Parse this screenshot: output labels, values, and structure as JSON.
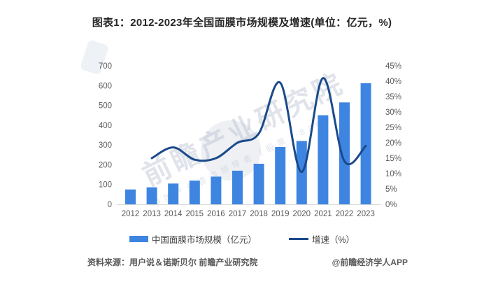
{
  "title": "图表1：2012-2023年全国面膜市场规模及增速(单位：亿元，%)",
  "legend": {
    "bars": "中国面膜市场规模（亿元）",
    "line": "增速（%）"
  },
  "footer": {
    "source": "资料来源：用户说＆诺斯贝尔 前瞻产业研究院",
    "credit": "@前瞻经济学人APP"
  },
  "watermark": {
    "main": "前瞻产业研究院",
    "sub": "中国产业咨询领导者（股票：839599）"
  },
  "colors": {
    "bar": "#3d85e1",
    "line": "#1b4a8b",
    "axis_text": "#595959",
    "baseline": "#d9d9d9"
  },
  "chart_data": {
    "type": "bar",
    "subtype": "bar+line combo, dual axis",
    "title": "图表1：2012-2023年全国面膜市场规模及增速(单位：亿元，%)",
    "categories": [
      "2012",
      "2013",
      "2014",
      "2015",
      "2016",
      "2017",
      "2018",
      "2019",
      "2020",
      "2021",
      "2022",
      "2023"
    ],
    "series": [
      {
        "name": "中国面膜市场规模（亿元）",
        "type": "bar",
        "axis": "left",
        "values": [
          75,
          86,
          105,
          120,
          140,
          170,
          205,
          290,
          320,
          450,
          515,
          612
        ]
      },
      {
        "name": "增速（%）",
        "type": "line",
        "axis": "right",
        "smooth": true,
        "values": [
          null,
          15,
          18.5,
          14.5,
          15,
          20,
          23,
          39.5,
          10.5,
          41,
          14,
          19
        ]
      }
    ],
    "left_axis": {
      "min": 0,
      "max": 700,
      "step": 100,
      "suffix": ""
    },
    "right_axis": {
      "min": 0,
      "max": 45,
      "step": 5,
      "suffix": "%"
    },
    "grid": false,
    "legend_position": "bottom"
  }
}
